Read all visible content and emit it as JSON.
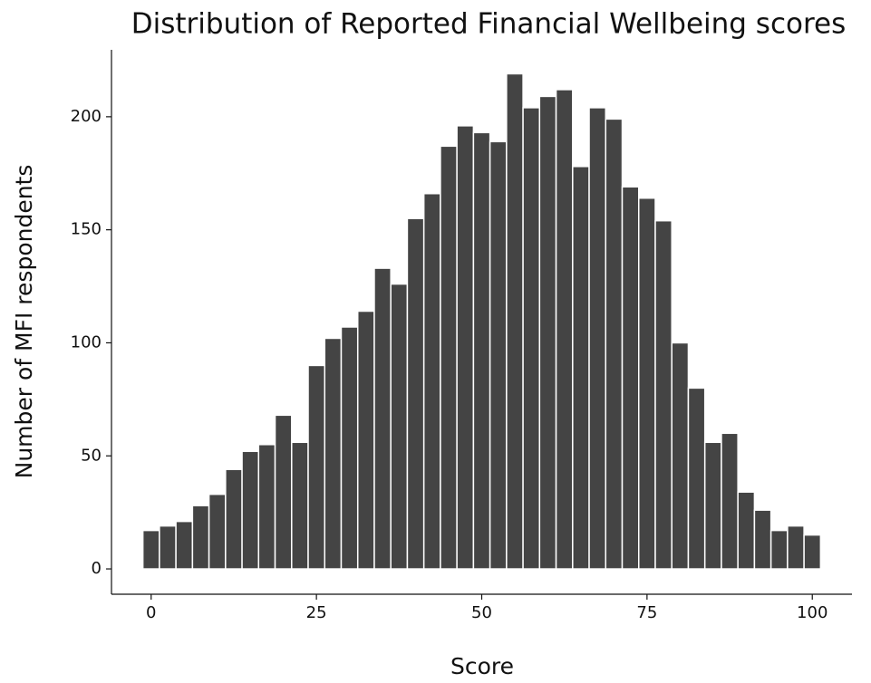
{
  "chart_data": {
    "type": "histogram",
    "title": "Distribution of Reported Financial Wellbeing scores",
    "x_label": "Score",
    "y_label": "Number of MFI respondents",
    "bins": [
      -1.25,
      1.25,
      3.75,
      6.25,
      8.75,
      11.25,
      13.75,
      16.25,
      18.75,
      21.25,
      23.75,
      26.25,
      28.75,
      31.25,
      33.75,
      36.25,
      38.75,
      41.25,
      43.75,
      46.25,
      48.75,
      51.25,
      53.75,
      56.25,
      58.75,
      61.25,
      63.75,
      66.25,
      68.75,
      71.25,
      73.75,
      76.25,
      78.75,
      81.25,
      83.75,
      86.25,
      88.75,
      91.25,
      93.75,
      96.25,
      98.75,
      101.25
    ],
    "values": [
      17,
      19,
      21,
      28,
      33,
      44,
      52,
      55,
      68,
      56,
      90,
      102,
      107,
      114,
      133,
      126,
      155,
      166,
      187,
      196,
      193,
      189,
      219,
      204,
      209,
      212,
      178,
      204,
      199,
      169,
      164,
      154,
      100,
      80,
      56,
      60,
      34,
      26,
      17,
      19,
      15
    ],
    "color": "#444444",
    "xlim": [
      -6,
      106
    ],
    "ylim": [
      -11.2,
      229.6
    ],
    "xticks": [
      0,
      25,
      50,
      75,
      100
    ],
    "yticks": [
      0,
      50,
      100,
      150,
      200
    ]
  }
}
